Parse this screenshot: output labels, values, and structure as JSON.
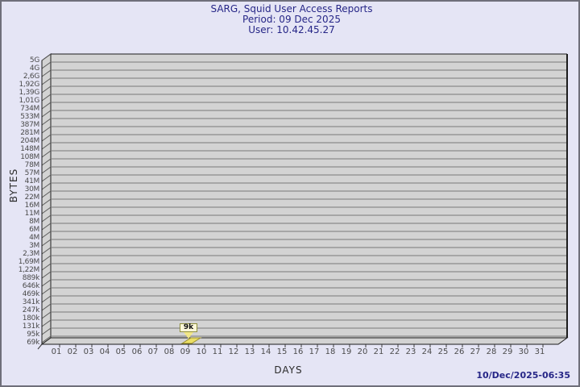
{
  "window": {
    "bg_color": "#e5e5f5",
    "border_color": "#6f6f7a"
  },
  "header": {
    "title": "SARG, Squid User Access Reports",
    "period": "Period: 09 Dec 2025",
    "user": "User: 10.42.45.27",
    "text_color": "#262687"
  },
  "footer": {
    "timestamp": "10/Dec/2025-06:35"
  },
  "chart_data": {
    "type": "bar",
    "title": "SARG, Squid User Access Reports",
    "subtitle": "Period: 09 Dec 2025",
    "subtitle2": "User: 10.42.45.27",
    "xlabel": "DAYS",
    "ylabel": "BYTES",
    "style": "3d-bar",
    "grid": "horizontal",
    "legend_position": "none",
    "y_tick_labels": [
      "5G",
      "4G",
      "2,6G",
      "1,92G",
      "1,39G",
      "1,01G",
      "734M",
      "533M",
      "387M",
      "281M",
      "204M",
      "148M",
      "108M",
      "78M",
      "57M",
      "41M",
      "30M",
      "22M",
      "16M",
      "11M",
      "8M",
      "6M",
      "4M",
      "3M",
      "2,3M",
      "1,69M",
      "1,22M",
      "889k",
      "646k",
      "469k",
      "341k",
      "247k",
      "180k",
      "131k",
      "95k",
      "69k"
    ],
    "x_tick_labels": [
      "01",
      "02",
      "03",
      "04",
      "05",
      "06",
      "07",
      "08",
      "09",
      "10",
      "11",
      "12",
      "13",
      "14",
      "15",
      "16",
      "17",
      "18",
      "19",
      "20",
      "21",
      "22",
      "23",
      "24",
      "25",
      "26",
      "27",
      "28",
      "29",
      "30",
      "31"
    ],
    "y_axis_range_note": "log-like scale from 69k to 5G",
    "bars": [
      {
        "day": "09",
        "value_label": "9k",
        "value_bytes": 9000
      }
    ],
    "colors": {
      "plot_bg": "#d3d3d3",
      "gridline": "#787878",
      "frame": "#1c1c1c",
      "wall_diagonal": "#5a5a5a",
      "tick": "#3a3a3a",
      "bar_fill": "#ecdf66",
      "bar_pointer_fill": "#f2e788",
      "bar_edge": "#9a8f2e",
      "bar_label_bg": "#faf6d8",
      "bar_label_border": "#8f8f3c",
      "tick_text": "#4a4a4a"
    }
  }
}
